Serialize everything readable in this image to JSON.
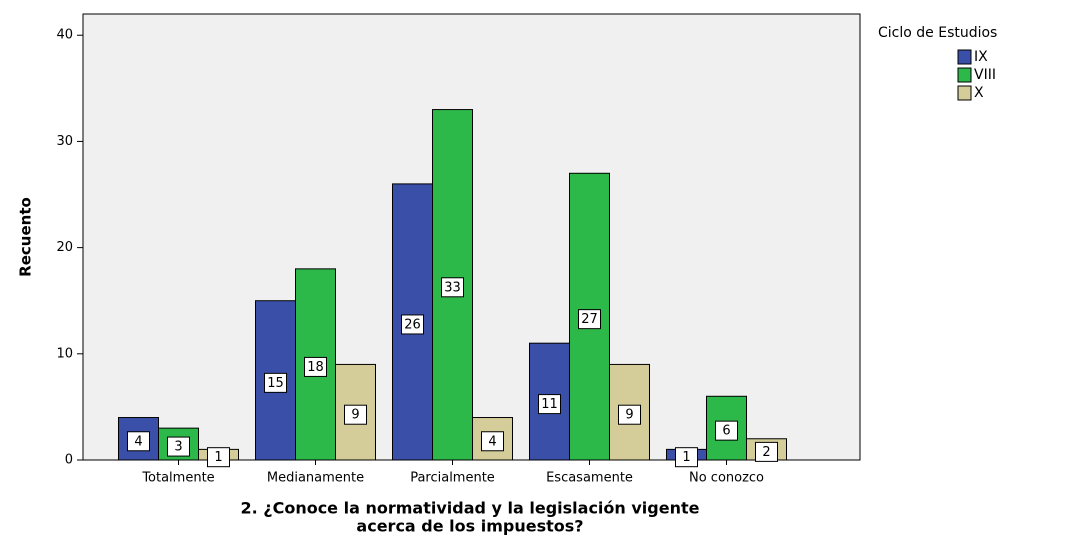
{
  "chart_data": {
    "type": "bar",
    "xlabel": [
      "2. ¿Conoce la normatividad y la legislación vigente",
      "acerca de los impuestos?"
    ],
    "ylabel": "Recuento",
    "legend_title": "Ciclo de Estudios",
    "categories": [
      "Totalmente",
      "Medianamente",
      "Parcialmente",
      "Escasamente",
      "No conozco"
    ],
    "series": [
      {
        "name": "IX",
        "color": "#3a4fa8",
        "values": [
          4,
          15,
          26,
          11,
          1
        ]
      },
      {
        "name": "VIII",
        "color": "#2db84a",
        "values": [
          3,
          18,
          33,
          27,
          6
        ]
      },
      {
        "name": "X",
        "color": "#d4cc99",
        "values": [
          1,
          9,
          4,
          9,
          2
        ]
      }
    ],
    "ylim": [
      0,
      42
    ],
    "yticks": [
      0,
      10,
      20,
      30,
      40
    ],
    "legend": "top-right",
    "value_labels_shown": true
  }
}
